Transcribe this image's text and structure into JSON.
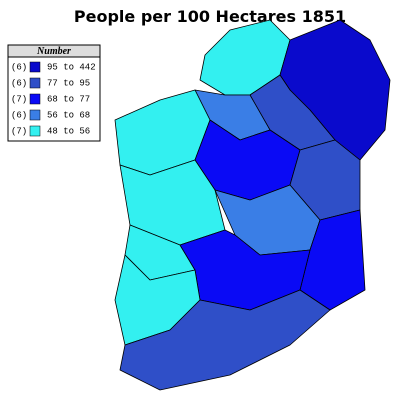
{
  "title": "People per 100 Hectares 1851",
  "legend": {
    "title": "Number",
    "items": [
      {
        "count": "(6)",
        "range": "95 to 442",
        "color": "#0a0acc"
      },
      {
        "count": "(6)",
        "range": "77 to 95",
        "color": "#2f4fc8"
      },
      {
        "count": "(7)",
        "range": "68 to 77",
        "color": "#0a0af5"
      },
      {
        "count": "(6)",
        "range": "56 to 68",
        "color": "#3a7ee6"
      },
      {
        "count": "(7)",
        "range": "48 to 56",
        "color": "#33f0f0"
      }
    ]
  }
}
